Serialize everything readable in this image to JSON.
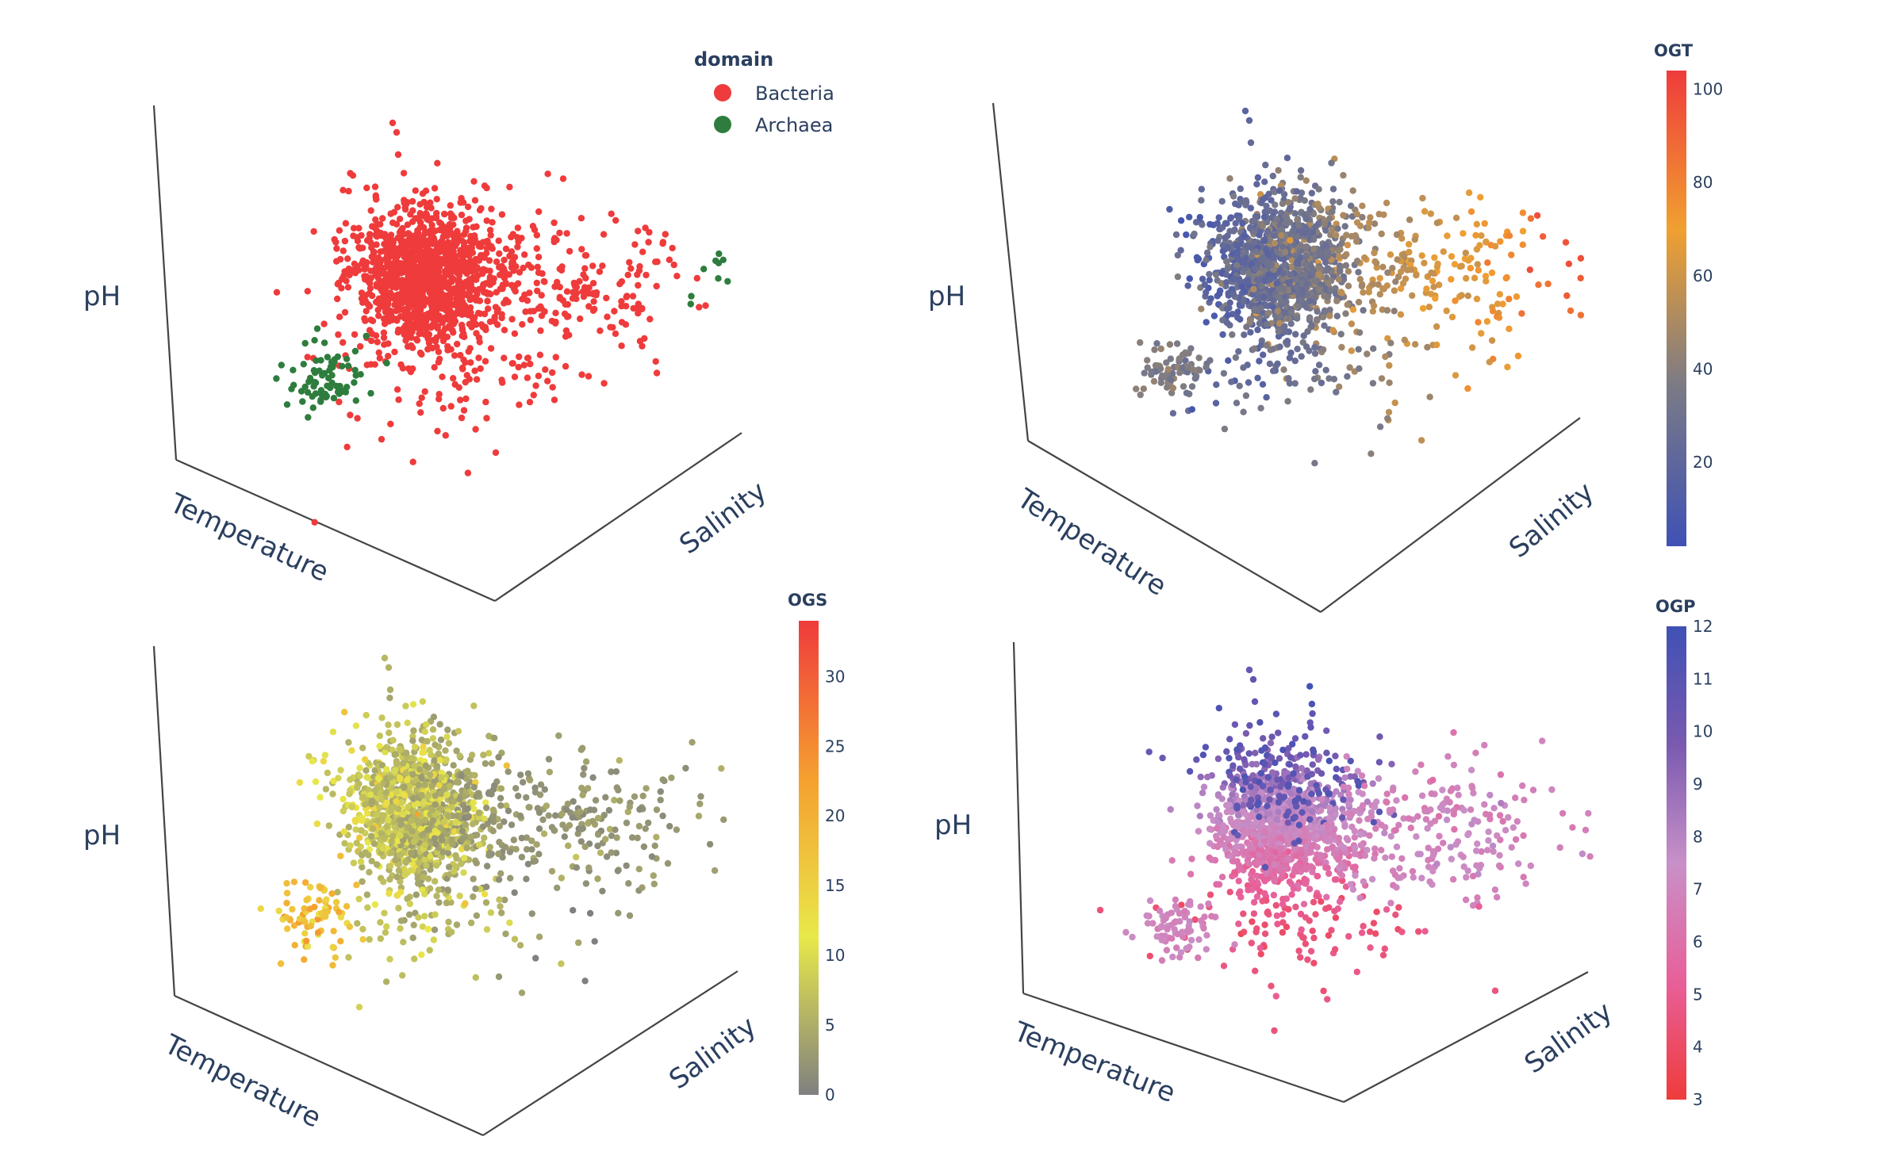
{
  "figure_title": "",
  "chart_data": [
    {
      "type": "scatter3d",
      "panel": "top-left",
      "axes": {
        "x": "Temperature",
        "y": "Salinity",
        "z": "pH"
      },
      "color_by": "domain",
      "legend": {
        "title": "domain",
        "placement": "top-right",
        "entries": [
          {
            "name": "Bacteria",
            "color": "#ef3b3b"
          },
          {
            "name": "Archaea",
            "color": "#2e7d3e"
          }
        ]
      },
      "series": [
        {
          "name": "Bacteria",
          "color": "#ef3b3b",
          "approx_points": 1400
        },
        {
          "name": "Archaea",
          "color": "#2e7d3e",
          "approx_points": 90
        }
      ]
    },
    {
      "type": "scatter3d",
      "panel": "top-right",
      "axes": {
        "x": "Temperature",
        "y": "Salinity",
        "z": "pH"
      },
      "color_by": "OGT",
      "colorbar": {
        "title": "OGT",
        "range": [
          2,
          104
        ],
        "ticks": [
          100,
          80,
          60,
          40,
          20
        ],
        "colors": [
          "#3f51b5",
          "#7a7a86",
          "#f0a030",
          "#ef3b3b"
        ]
      }
    },
    {
      "type": "scatter3d",
      "panel": "bottom-left",
      "axes": {
        "x": "Temperature",
        "y": "Salinity",
        "z": "pH"
      },
      "color_by": "OGS",
      "colorbar": {
        "title": "OGS",
        "range": [
          0,
          34
        ],
        "ticks": [
          30,
          25,
          20,
          15,
          10,
          5,
          0
        ],
        "colors": [
          "#808080",
          "#e8e84a",
          "#f5a030",
          "#ef3b3b"
        ]
      }
    },
    {
      "type": "scatter3d",
      "panel": "bottom-right",
      "axes": {
        "x": "Temperature",
        "y": "Salinity",
        "z": "pH"
      },
      "color_by": "OGP",
      "colorbar": {
        "title": "OGP",
        "range": [
          3,
          12
        ],
        "ticks": [
          12,
          11,
          10,
          9,
          8,
          7,
          6,
          5,
          4,
          3
        ],
        "colors": [
          "#ef3b3b",
          "#e8609a",
          "#c890c8",
          "#7a5ab0",
          "#3f51b5"
        ]
      }
    }
  ]
}
